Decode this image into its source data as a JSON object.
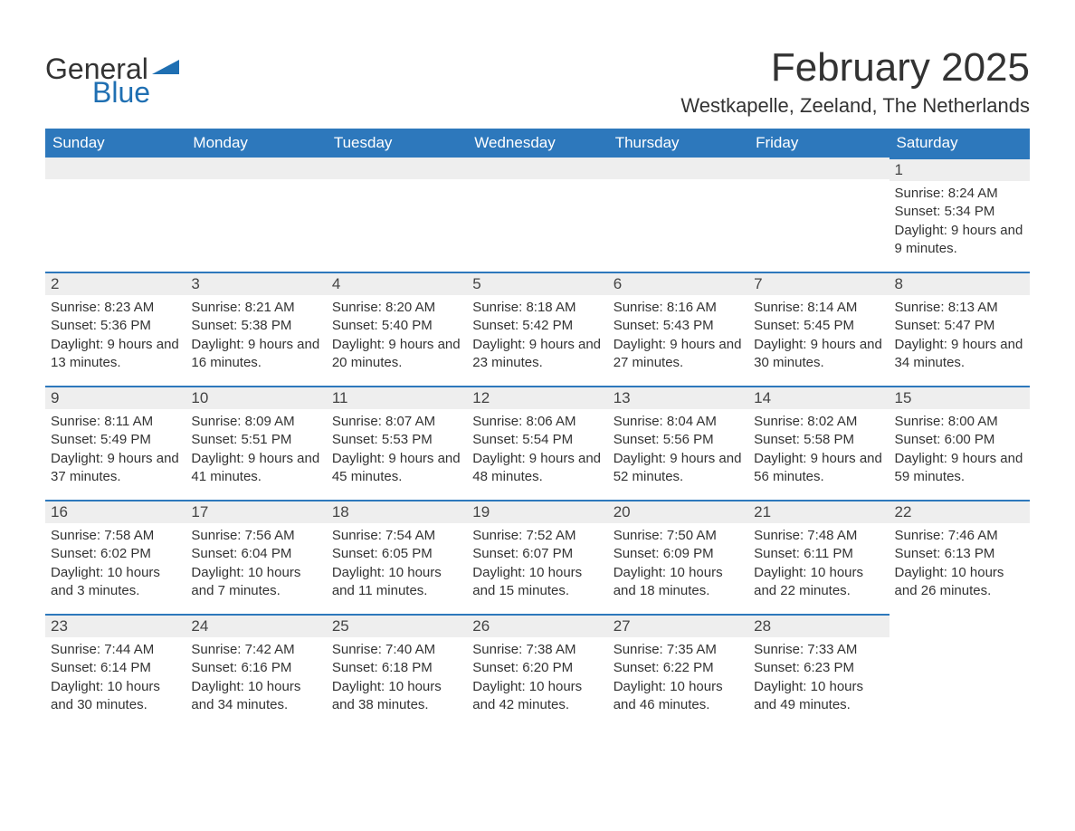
{
  "branding": {
    "logo_word1": "General",
    "logo_word2": "Blue",
    "logo_word1_color": "#333333",
    "logo_word2_color": "#1f6fb2",
    "triangle_color": "#1f6fb2"
  },
  "header": {
    "month_title": "February 2025",
    "location": "Westkapelle, Zeeland, The Netherlands"
  },
  "style": {
    "header_bg": "#2d78bc",
    "header_text": "#ffffff",
    "row_accent": "#2d78bc",
    "daynum_bg": "#eeeeee",
    "body_text": "#333333",
    "page_bg": "#ffffff",
    "title_fontsize": 44,
    "location_fontsize": 22,
    "dayhead_fontsize": 17,
    "body_fontsize": 15
  },
  "day_headers": [
    "Sunday",
    "Monday",
    "Tuesday",
    "Wednesday",
    "Thursday",
    "Friday",
    "Saturday"
  ],
  "weeks": [
    [
      null,
      null,
      null,
      null,
      null,
      null,
      {
        "n": "1",
        "sunrise": "Sunrise: 8:24 AM",
        "sunset": "Sunset: 5:34 PM",
        "daylight": "Daylight: 9 hours and 9 minutes."
      }
    ],
    [
      {
        "n": "2",
        "sunrise": "Sunrise: 8:23 AM",
        "sunset": "Sunset: 5:36 PM",
        "daylight": "Daylight: 9 hours and 13 minutes."
      },
      {
        "n": "3",
        "sunrise": "Sunrise: 8:21 AM",
        "sunset": "Sunset: 5:38 PM",
        "daylight": "Daylight: 9 hours and 16 minutes."
      },
      {
        "n": "4",
        "sunrise": "Sunrise: 8:20 AM",
        "sunset": "Sunset: 5:40 PM",
        "daylight": "Daylight: 9 hours and 20 minutes."
      },
      {
        "n": "5",
        "sunrise": "Sunrise: 8:18 AM",
        "sunset": "Sunset: 5:42 PM",
        "daylight": "Daylight: 9 hours and 23 minutes."
      },
      {
        "n": "6",
        "sunrise": "Sunrise: 8:16 AM",
        "sunset": "Sunset: 5:43 PM",
        "daylight": "Daylight: 9 hours and 27 minutes."
      },
      {
        "n": "7",
        "sunrise": "Sunrise: 8:14 AM",
        "sunset": "Sunset: 5:45 PM",
        "daylight": "Daylight: 9 hours and 30 minutes."
      },
      {
        "n": "8",
        "sunrise": "Sunrise: 8:13 AM",
        "sunset": "Sunset: 5:47 PM",
        "daylight": "Daylight: 9 hours and 34 minutes."
      }
    ],
    [
      {
        "n": "9",
        "sunrise": "Sunrise: 8:11 AM",
        "sunset": "Sunset: 5:49 PM",
        "daylight": "Daylight: 9 hours and 37 minutes."
      },
      {
        "n": "10",
        "sunrise": "Sunrise: 8:09 AM",
        "sunset": "Sunset: 5:51 PM",
        "daylight": "Daylight: 9 hours and 41 minutes."
      },
      {
        "n": "11",
        "sunrise": "Sunrise: 8:07 AM",
        "sunset": "Sunset: 5:53 PM",
        "daylight": "Daylight: 9 hours and 45 minutes."
      },
      {
        "n": "12",
        "sunrise": "Sunrise: 8:06 AM",
        "sunset": "Sunset: 5:54 PM",
        "daylight": "Daylight: 9 hours and 48 minutes."
      },
      {
        "n": "13",
        "sunrise": "Sunrise: 8:04 AM",
        "sunset": "Sunset: 5:56 PM",
        "daylight": "Daylight: 9 hours and 52 minutes."
      },
      {
        "n": "14",
        "sunrise": "Sunrise: 8:02 AM",
        "sunset": "Sunset: 5:58 PM",
        "daylight": "Daylight: 9 hours and 56 minutes."
      },
      {
        "n": "15",
        "sunrise": "Sunrise: 8:00 AM",
        "sunset": "Sunset: 6:00 PM",
        "daylight": "Daylight: 9 hours and 59 minutes."
      }
    ],
    [
      {
        "n": "16",
        "sunrise": "Sunrise: 7:58 AM",
        "sunset": "Sunset: 6:02 PM",
        "daylight": "Daylight: 10 hours and 3 minutes."
      },
      {
        "n": "17",
        "sunrise": "Sunrise: 7:56 AM",
        "sunset": "Sunset: 6:04 PM",
        "daylight": "Daylight: 10 hours and 7 minutes."
      },
      {
        "n": "18",
        "sunrise": "Sunrise: 7:54 AM",
        "sunset": "Sunset: 6:05 PM",
        "daylight": "Daylight: 10 hours and 11 minutes."
      },
      {
        "n": "19",
        "sunrise": "Sunrise: 7:52 AM",
        "sunset": "Sunset: 6:07 PM",
        "daylight": "Daylight: 10 hours and 15 minutes."
      },
      {
        "n": "20",
        "sunrise": "Sunrise: 7:50 AM",
        "sunset": "Sunset: 6:09 PM",
        "daylight": "Daylight: 10 hours and 18 minutes."
      },
      {
        "n": "21",
        "sunrise": "Sunrise: 7:48 AM",
        "sunset": "Sunset: 6:11 PM",
        "daylight": "Daylight: 10 hours and 22 minutes."
      },
      {
        "n": "22",
        "sunrise": "Sunrise: 7:46 AM",
        "sunset": "Sunset: 6:13 PM",
        "daylight": "Daylight: 10 hours and 26 minutes."
      }
    ],
    [
      {
        "n": "23",
        "sunrise": "Sunrise: 7:44 AM",
        "sunset": "Sunset: 6:14 PM",
        "daylight": "Daylight: 10 hours and 30 minutes."
      },
      {
        "n": "24",
        "sunrise": "Sunrise: 7:42 AM",
        "sunset": "Sunset: 6:16 PM",
        "daylight": "Daylight: 10 hours and 34 minutes."
      },
      {
        "n": "25",
        "sunrise": "Sunrise: 7:40 AM",
        "sunset": "Sunset: 6:18 PM",
        "daylight": "Daylight: 10 hours and 38 minutes."
      },
      {
        "n": "26",
        "sunrise": "Sunrise: 7:38 AM",
        "sunset": "Sunset: 6:20 PM",
        "daylight": "Daylight: 10 hours and 42 minutes."
      },
      {
        "n": "27",
        "sunrise": "Sunrise: 7:35 AM",
        "sunset": "Sunset: 6:22 PM",
        "daylight": "Daylight: 10 hours and 46 minutes."
      },
      {
        "n": "28",
        "sunrise": "Sunrise: 7:33 AM",
        "sunset": "Sunset: 6:23 PM",
        "daylight": "Daylight: 10 hours and 49 minutes."
      },
      null
    ]
  ]
}
